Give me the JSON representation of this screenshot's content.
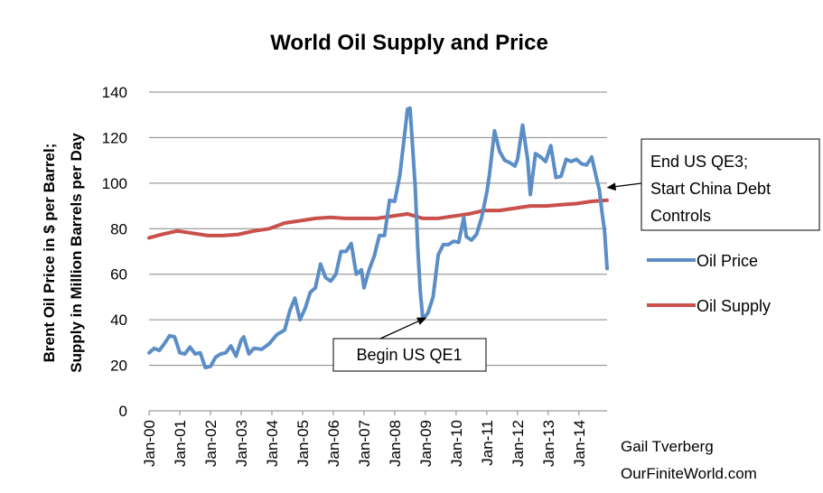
{
  "chart_data": {
    "type": "line",
    "title": "World Oil Supply and Price",
    "ylabel_line1": "Brent Oil Price in $ per Barrel;",
    "ylabel_line2": "Supply in Million Barrels per Day",
    "xlabel": "",
    "ylim": [
      0,
      140
    ],
    "y_ticks": [
      "0",
      "20",
      "40",
      "60",
      "80",
      "100",
      "120",
      "140"
    ],
    "x_ticks": [
      "Jan-00",
      "Jan-01",
      "Jan-02",
      "Jan-03",
      "Jan-04",
      "Jan-05",
      "Jan-06",
      "Jan-07",
      "Jan-08",
      "Jan-09",
      "Jan-10",
      "Jan-11",
      "Jan-12",
      "Jan-13",
      "Jan-14"
    ],
    "x_start": "2000-01",
    "x_end": "2014-11",
    "grid": true,
    "legend_position": "right",
    "series": [
      {
        "name": "Oil Price",
        "color": "#5b8ec6",
        "points": [
          [
            "2000-01",
            25.5
          ],
          [
            "2000-03",
            27.5
          ],
          [
            "2000-05",
            26.5
          ],
          [
            "2000-07",
            29.5
          ],
          [
            "2000-09",
            33
          ],
          [
            "2000-11",
            32.5
          ],
          [
            "2001-01",
            25.5
          ],
          [
            "2001-03",
            25
          ],
          [
            "2001-05",
            28
          ],
          [
            "2001-07",
            25
          ],
          [
            "2001-09",
            25.5
          ],
          [
            "2001-11",
            19
          ],
          [
            "2002-01",
            19.5
          ],
          [
            "2002-03",
            23.5
          ],
          [
            "2002-05",
            25
          ],
          [
            "2002-07",
            25.5
          ],
          [
            "2002-09",
            28.5
          ],
          [
            "2002-11",
            24
          ],
          [
            "2003-01",
            31
          ],
          [
            "2003-02",
            32.5
          ],
          [
            "2003-04",
            25
          ],
          [
            "2003-06",
            27.5
          ],
          [
            "2003-09",
            27
          ],
          [
            "2003-12",
            29.5
          ],
          [
            "2004-03",
            33.5
          ],
          [
            "2004-06",
            35.5
          ],
          [
            "2004-08",
            44
          ],
          [
            "2004-10",
            49.5
          ],
          [
            "2004-12",
            40
          ],
          [
            "2005-02",
            45
          ],
          [
            "2005-04",
            52
          ],
          [
            "2005-06",
            54
          ],
          [
            "2005-08",
            64.5
          ],
          [
            "2005-10",
            58.5
          ],
          [
            "2005-12",
            57
          ],
          [
            "2006-02",
            60
          ],
          [
            "2006-04",
            70
          ],
          [
            "2006-06",
            70
          ],
          [
            "2006-08",
            73.5
          ],
          [
            "2006-10",
            60
          ],
          [
            "2006-12",
            62
          ],
          [
            "2007-01",
            54
          ],
          [
            "2007-03",
            62
          ],
          [
            "2007-05",
            68
          ],
          [
            "2007-07",
            77
          ],
          [
            "2007-09",
            77
          ],
          [
            "2007-11",
            92.5
          ],
          [
            "2008-01",
            92
          ],
          [
            "2008-03",
            103.5
          ],
          [
            "2008-05",
            122.5
          ],
          [
            "2008-06",
            132.5
          ],
          [
            "2008-07",
            133
          ],
          [
            "2008-09",
            98.5
          ],
          [
            "2008-10",
            72
          ],
          [
            "2008-11",
            52.5
          ],
          [
            "2008-12",
            40
          ],
          [
            "2009-02",
            43
          ],
          [
            "2009-04",
            50
          ],
          [
            "2009-06",
            68.5
          ],
          [
            "2009-08",
            73
          ],
          [
            "2009-10",
            73
          ],
          [
            "2009-12",
            74.5
          ],
          [
            "2010-02",
            74
          ],
          [
            "2010-04",
            85
          ],
          [
            "2010-05",
            76.5
          ],
          [
            "2010-07",
            75
          ],
          [
            "2010-09",
            77.5
          ],
          [
            "2010-11",
            85
          ],
          [
            "2011-01",
            96
          ],
          [
            "2011-02",
            103.5
          ],
          [
            "2011-04",
            123
          ],
          [
            "2011-06",
            114
          ],
          [
            "2011-08",
            110
          ],
          [
            "2011-10",
            109
          ],
          [
            "2011-12",
            107.5
          ],
          [
            "2012-01",
            110.5
          ],
          [
            "2012-03",
            125.5
          ],
          [
            "2012-05",
            110
          ],
          [
            "2012-06",
            95
          ],
          [
            "2012-08",
            113
          ],
          [
            "2012-10",
            111.5
          ],
          [
            "2012-12",
            109.5
          ],
          [
            "2013-02",
            116.5
          ],
          [
            "2013-04",
            102.5
          ],
          [
            "2013-06",
            103
          ],
          [
            "2013-08",
            110.5
          ],
          [
            "2013-10",
            109.5
          ],
          [
            "2013-12",
            110.5
          ],
          [
            "2014-02",
            108.5
          ],
          [
            "2014-04",
            108
          ],
          [
            "2014-06",
            111.5
          ],
          [
            "2014-08",
            101.5
          ],
          [
            "2014-09",
            97
          ],
          [
            "2014-10",
            87.5
          ],
          [
            "2014-11",
            79
          ],
          [
            "2014-12",
            62.5
          ]
        ]
      },
      {
        "name": "Oil Supply",
        "color": "#c9504b",
        "points": [
          [
            "2000-01",
            76
          ],
          [
            "2000-06",
            77.5
          ],
          [
            "2000-12",
            79
          ],
          [
            "2001-06",
            78
          ],
          [
            "2001-12",
            77
          ],
          [
            "2002-06",
            77
          ],
          [
            "2002-12",
            77.5
          ],
          [
            "2003-06",
            79
          ],
          [
            "2003-12",
            80
          ],
          [
            "2004-06",
            82.5
          ],
          [
            "2004-12",
            83.5
          ],
          [
            "2005-06",
            84.5
          ],
          [
            "2005-12",
            85
          ],
          [
            "2006-06",
            84.5
          ],
          [
            "2006-12",
            84.5
          ],
          [
            "2007-06",
            84.5
          ],
          [
            "2007-12",
            85.5
          ],
          [
            "2008-06",
            86.5
          ],
          [
            "2008-12",
            84.5
          ],
          [
            "2009-06",
            84.5
          ],
          [
            "2009-12",
            85.5
          ],
          [
            "2010-06",
            86.5
          ],
          [
            "2010-12",
            88
          ],
          [
            "2011-06",
            88
          ],
          [
            "2011-12",
            89
          ],
          [
            "2012-06",
            90
          ],
          [
            "2012-12",
            90
          ],
          [
            "2013-06",
            90.5
          ],
          [
            "2013-12",
            91
          ],
          [
            "2014-06",
            92
          ],
          [
            "2014-12",
            92.5
          ]
        ]
      }
    ],
    "annotations": [
      {
        "text": "Begin US QE1",
        "target": [
          "2008-12",
          41
        ]
      },
      {
        "lines": [
          "End US QE3;",
          "Start China Debt",
          "Controls"
        ],
        "target": [
          "2014-09",
          98
        ]
      }
    ],
    "credit_lines": [
      "Gail Tverberg",
      "OurFiniteWorld.com"
    ]
  }
}
